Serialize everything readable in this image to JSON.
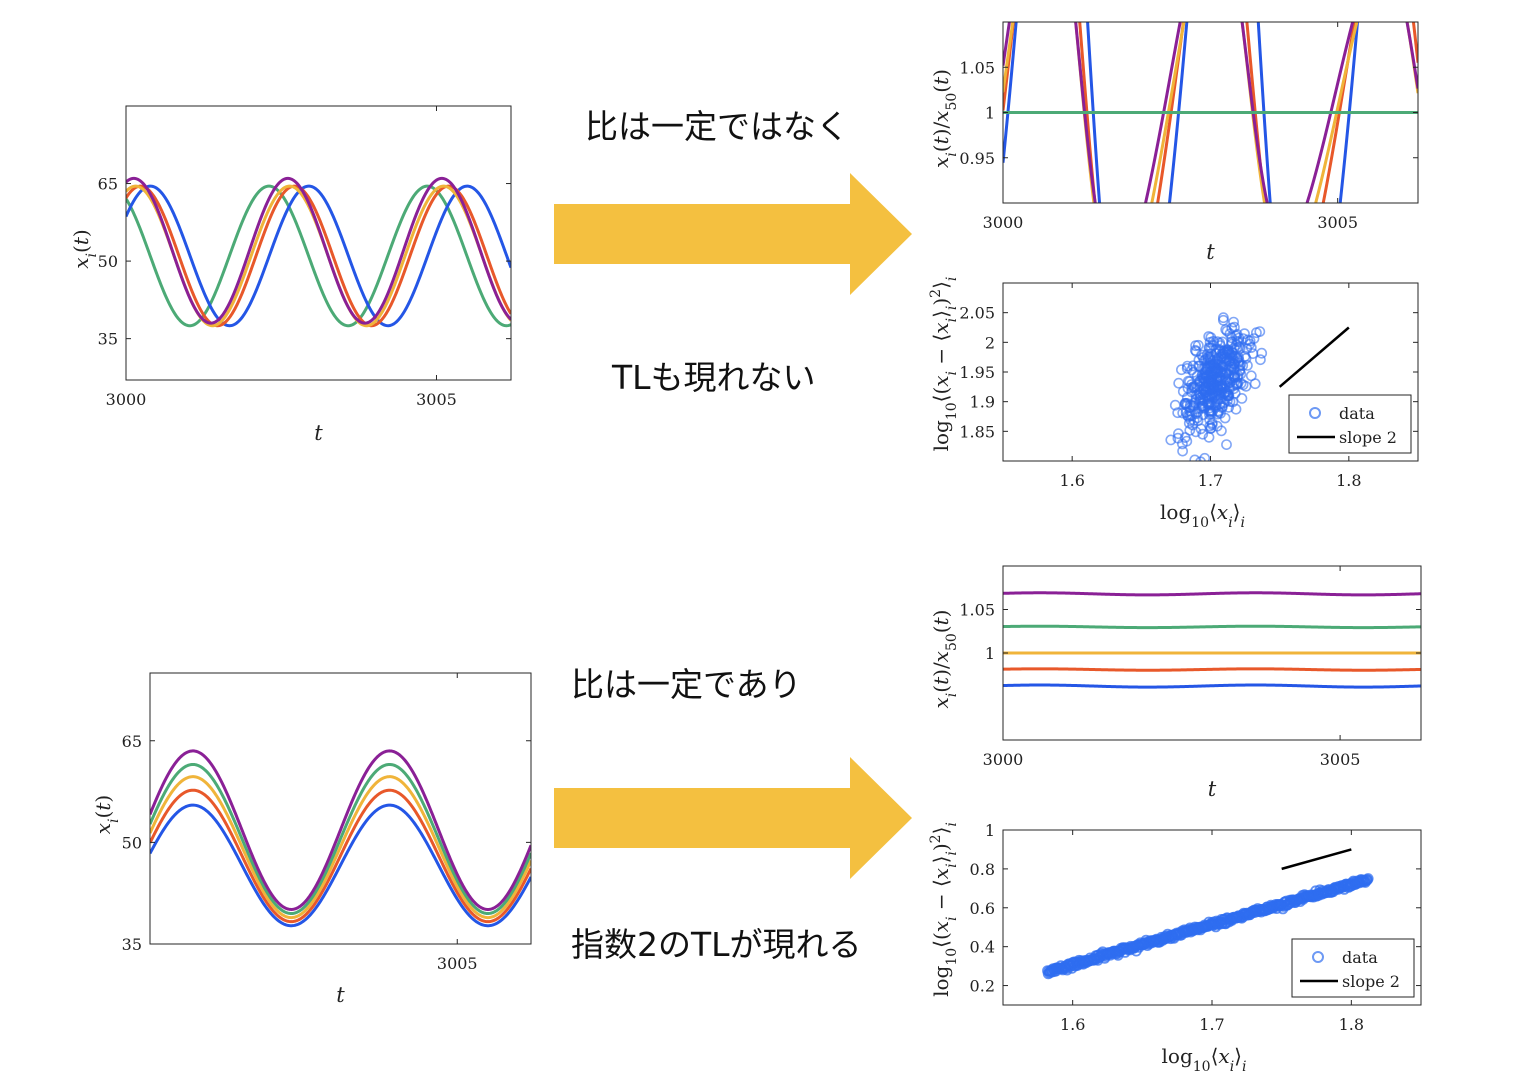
{
  "colors": {
    "series": [
      "#2456e6",
      "#e8582a",
      "#f0b43a",
      "#4caa76",
      "#8a2096"
    ],
    "scatter": "#2f6df0",
    "arrow": "#f4c040"
  },
  "annotations": {
    "top_line1": "比は一定ではなく",
    "top_line2": "TLも現れない",
    "bottom_line1": "比は一定であり",
    "bottom_line2": "指数2のTLが現れる"
  },
  "chart_data": [
    {
      "id": "A",
      "type": "line",
      "xlabel": "t",
      "ylabel": "x_i(t)",
      "xlim": [
        3000,
        3006.2
      ],
      "ylim": [
        27,
        80
      ],
      "xticks": [
        "3000",
        "3005"
      ],
      "yticks": [
        "35",
        "50",
        "65"
      ],
      "series": [
        {
          "period": 2.55,
          "mean": 51,
          "amp": 13.5,
          "phase": 0.6
        },
        {
          "period": 2.48,
          "mean": 51,
          "amp": 13.5,
          "phase": 0.98
        },
        {
          "period": 2.48,
          "mean": 51,
          "amp": 13.5,
          "phase": 1.18
        },
        {
          "period": 2.55,
          "mean": 51,
          "amp": 13.5,
          "phase": 2.18
        },
        {
          "period": 2.48,
          "mean": 52,
          "amp": 14,
          "phase": 1.25
        }
      ]
    },
    {
      "id": "B",
      "type": "line",
      "xlabel": "t",
      "ylabel": "x_i(t)/x_50(t)",
      "xlim": [
        3000,
        3006.2
      ],
      "ylim": [
        0.9,
        1.1
      ],
      "xticks": [
        "3000",
        "3005"
      ],
      "yticks": [
        "0.95",
        "1",
        "1.05"
      ],
      "ratio_series": [
        {
          "ref_index": 3,
          "num_index": 0
        },
        {
          "ref_index": 3,
          "num_index": 1
        },
        {
          "ref_index": 3,
          "num_index": 2
        },
        {
          "ref_index": 3,
          "num_index": 4
        },
        {
          "ref_index": 3,
          "num_index": 3
        }
      ]
    },
    {
      "id": "C",
      "type": "scatter",
      "xlabel": "log10⟨x_i⟩_i",
      "ylabel": "log10⟨(x_i − ⟨x_i⟩_i)²⟩_i",
      "xlim": [
        1.55,
        1.85
      ],
      "ylim": [
        1.8,
        2.1
      ],
      "xticks": [
        "1.6",
        "1.7",
        "1.8"
      ],
      "yticks": [
        "1.85",
        "1.9",
        "1.95",
        "2",
        "2.05"
      ],
      "cluster": {
        "x_center": 1.703,
        "x_spread": 0.012,
        "y_center": 1.935,
        "y_spread": 0.045,
        "n": 420
      },
      "slope_line": {
        "x": [
          1.75,
          1.8
        ],
        "y": [
          1.925,
          2.025
        ]
      },
      "legend": [
        "data",
        "slope 2"
      ]
    },
    {
      "id": "D",
      "type": "line",
      "xlabel": "t",
      "ylabel": "x_i(t)",
      "xlim": [
        3000,
        3006.2
      ],
      "ylim": [
        35,
        75
      ],
      "xticks": [
        "3005"
      ],
      "yticks": [
        "35",
        "50",
        "65"
      ],
      "series": [
        {
          "period": 3.2,
          "mean": 46.6,
          "amp": 8.9,
          "phase": 0.2
        },
        {
          "period": 3.2,
          "mean": 48.0,
          "amp": 9.7,
          "phase": 0.2
        },
        {
          "period": 3.2,
          "mean": 49.3,
          "amp": 10.4,
          "phase": 0.2
        },
        {
          "period": 3.2,
          "mean": 50.5,
          "amp": 11.0,
          "phase": 0.2
        },
        {
          "period": 3.2,
          "mean": 51.8,
          "amp": 11.7,
          "phase": 0.2
        }
      ]
    },
    {
      "id": "E",
      "type": "line",
      "xlabel": "t",
      "ylabel": "x_i(t)/x_50(t)",
      "xlim": [
        3000,
        3006.2
      ],
      "ylim": [
        0.9,
        1.1
      ],
      "xticks": [
        "3000",
        "3005"
      ],
      "yticks": [
        "1",
        "1.05"
      ],
      "series": [
        {
          "value": 0.962,
          "wiggle": 0.0012
        },
        {
          "value": 0.981,
          "wiggle": 0.0008
        },
        {
          "value": 1.0,
          "wiggle": 0.0
        },
        {
          "value": 1.03,
          "wiggle": 0.0008
        },
        {
          "value": 1.068,
          "wiggle": 0.0012
        }
      ]
    },
    {
      "id": "F",
      "type": "scatter",
      "xlabel": "log10⟨x_i⟩_i",
      "ylabel": "log10⟨(x_i − ⟨x_i⟩_i)²⟩_i",
      "xlim": [
        1.55,
        1.85
      ],
      "ylim": [
        0.1,
        1.0
      ],
      "xticks": [
        "1.6",
        "1.7",
        "1.8"
      ],
      "yticks": [
        "0.2",
        "0.4",
        "0.6",
        "0.8",
        "1"
      ],
      "band": {
        "x": [
          1.582,
          1.812
        ],
        "y": [
          0.27,
          0.745
        ],
        "thickness": 0.014,
        "n": 460
      },
      "slope_line": {
        "x": [
          1.75,
          1.8
        ],
        "y": [
          0.8,
          0.9
        ]
      },
      "legend": [
        "data",
        "slope 2"
      ]
    }
  ]
}
